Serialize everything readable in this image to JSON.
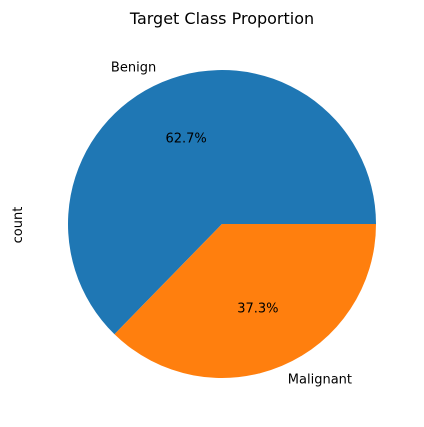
{
  "chart_data": {
    "type": "pie",
    "title": "Target Class Proportion",
    "ylabel": "count",
    "labels": [
      "Benign",
      "Malignant"
    ],
    "values": [
      62.7,
      37.3
    ],
    "autopct_labels": [
      "62.7%",
      "37.3%"
    ],
    "colors": [
      "#1f77b4",
      "#ff7f0e"
    ],
    "start_angle_deg": 0,
    "direction": "counterclockwise"
  }
}
